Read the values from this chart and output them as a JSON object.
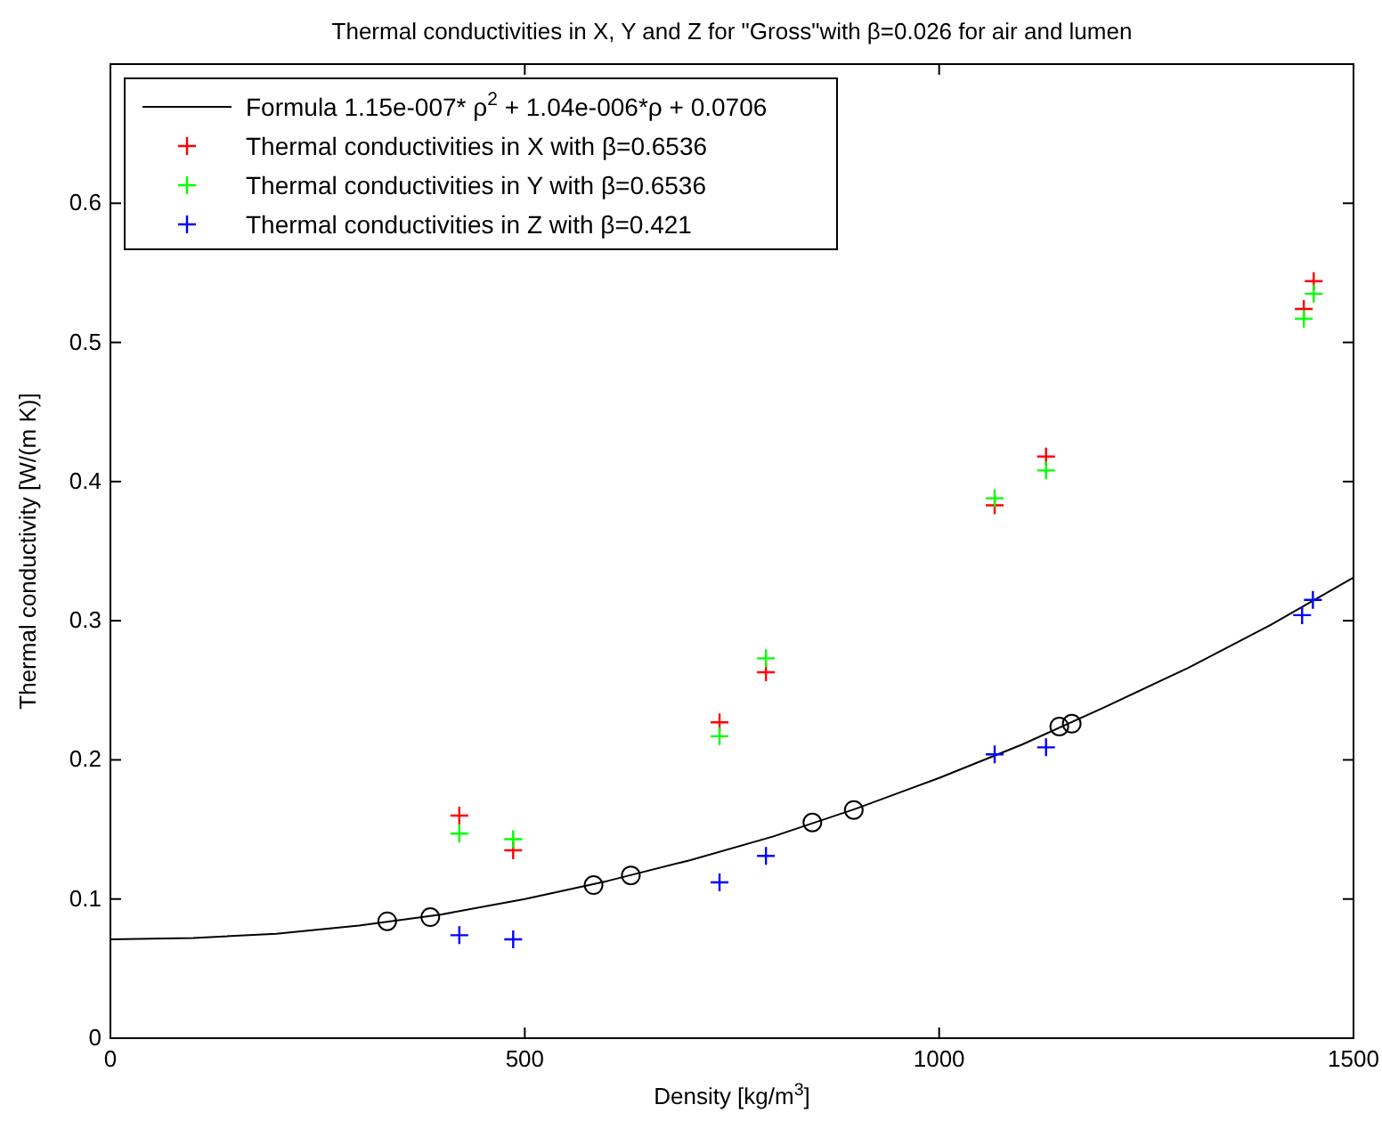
{
  "chart_data": {
    "type": "scatter",
    "title": "Thermal conductivities in X, Y and Z for \"Gross\"with β=0.026 for air and lumen",
    "xlabel": "Density [kg/m$^{3}$]",
    "ylabel": "Thermal conductivity [W/(m K)]",
    "xlim": [
      0,
      1500
    ],
    "ylim": [
      0,
      0.7
    ],
    "xticks": [
      0,
      500,
      1000,
      1500
    ],
    "yticks": [
      0,
      0.1,
      0.2,
      0.3,
      0.4,
      0.5,
      0.6
    ],
    "grid": false,
    "legend": "top left",
    "series": [
      {
        "name": "Formula 1.15e-007* ρ$^{2}$ + 1.04e-006*ρ + 0.0706",
        "type": "line",
        "color": "#000000",
        "marker": "none",
        "line_style": "solid",
        "x": [
          0,
          100,
          200,
          300,
          400,
          500,
          600,
          700,
          800,
          900,
          1000,
          1100,
          1200,
          1300,
          1400,
          1500
        ],
        "values": [
          0.071,
          0.072,
          0.075,
          0.081,
          0.089,
          0.1,
          0.113,
          0.128,
          0.145,
          0.165,
          0.187,
          0.211,
          0.238,
          0.266,
          0.297,
          0.331
        ]
      },
      {
        "color": "#000000",
        "marker": "circle",
        "x": [
          334,
          386,
          583,
          628,
          847,
          897,
          1145,
          1160
        ],
        "values": [
          0.084,
          0.087,
          0.11,
          0.117,
          0.155,
          0.164,
          0.224,
          0.226
        ]
      },
      {
        "name": "Thermal conductivities in X with β=0.6536",
        "color": "#ff0000",
        "marker": "cross",
        "x": [
          421,
          486,
          735,
          791,
          1067,
          1129,
          1440,
          1452
        ],
        "values": [
          0.16,
          0.135,
          0.227,
          0.263,
          0.383,
          0.418,
          0.524,
          0.544
        ]
      },
      {
        "name": "Thermal conductivities in Y with β=0.6536",
        "color": "#00ff00",
        "marker": "cross",
        "x": [
          421,
          486,
          735,
          791,
          1067,
          1129,
          1440,
          1452
        ],
        "values": [
          0.147,
          0.143,
          0.217,
          0.273,
          0.388,
          0.408,
          0.517,
          0.535
        ]
      },
      {
        "name": "Thermal conductivities in Z with β=0.421",
        "color": "#0000ff",
        "marker": "cross",
        "x": [
          421,
          486,
          735,
          791,
          1067,
          1129,
          1438,
          1451
        ],
        "values": [
          0.074,
          0.071,
          0.112,
          0.131,
          0.204,
          0.209,
          0.304,
          0.315
        ]
      }
    ]
  }
}
